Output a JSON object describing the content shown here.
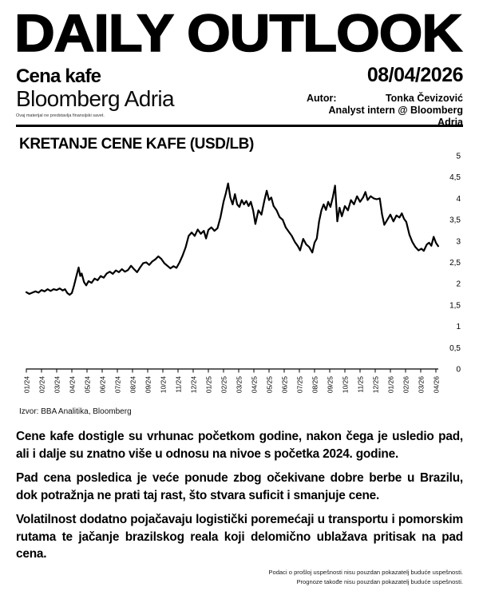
{
  "header": {
    "title": "DAILY OUTLOOK",
    "subtitle": "Cena kafe",
    "brand": "Bloomberg Adria",
    "date": "08/04/2026",
    "author_label": "Autor:",
    "author_name": "Tonka Čevizović",
    "author_role": "Analyst intern @ Bloomberg Adria",
    "micro_disclaimer": "Ovaj materijal ne predstavlja finansijski savet."
  },
  "chart": {
    "title": "KRETANJE CENE KAFE (USD/LB)",
    "source": "Izvor: BBA Analitika, Bloomberg"
  },
  "chart_data": {
    "type": "line",
    "title": "KRETANJE CENE KAFE (USD/LB)",
    "unit": "USD/LB",
    "grid": false,
    "legend": false,
    "line_color": "#000000",
    "xlim": [
      0,
      27.2
    ],
    "ylim": [
      0,
      5
    ],
    "x_tick_labels": [
      "01/24",
      "02/24",
      "03/24",
      "04/24",
      "05/24",
      "06/24",
      "07/24",
      "08/24",
      "09/24",
      "10/24",
      "11/24",
      "12/24",
      "01/25",
      "02/25",
      "03/25",
      "04/25",
      "05/25",
      "06/25",
      "07/25",
      "08/25",
      "09/25",
      "10/25",
      "11/25",
      "12/25",
      "01/26",
      "02/26",
      "03/26",
      "04/26"
    ],
    "y_ticks": [
      0,
      0.5,
      1,
      1.5,
      2,
      2.5,
      3,
      3.5,
      4,
      4.5,
      5
    ],
    "y_tick_labels": [
      "0",
      "0,5",
      "1",
      "1,5",
      "2",
      "2,5",
      "3",
      "3,5",
      "4",
      "4,5",
      "5"
    ],
    "series": [
      {
        "name": "Cena kafe (USD/LB)",
        "points": [
          [
            0,
            1.8
          ],
          [
            0.2,
            1.76
          ],
          [
            0.4,
            1.79
          ],
          [
            0.6,
            1.82
          ],
          [
            0.8,
            1.79
          ],
          [
            1.0,
            1.85
          ],
          [
            1.2,
            1.82
          ],
          [
            1.4,
            1.87
          ],
          [
            1.6,
            1.83
          ],
          [
            1.8,
            1.87
          ],
          [
            2.0,
            1.85
          ],
          [
            2.2,
            1.89
          ],
          [
            2.4,
            1.84
          ],
          [
            2.55,
            1.87
          ],
          [
            2.7,
            1.78
          ],
          [
            2.85,
            1.74
          ],
          [
            3.0,
            1.78
          ],
          [
            3.15,
            1.96
          ],
          [
            3.3,
            2.18
          ],
          [
            3.45,
            2.38
          ],
          [
            3.55,
            2.18
          ],
          [
            3.65,
            2.24
          ],
          [
            3.8,
            2.04
          ],
          [
            3.95,
            1.96
          ],
          [
            4.1,
            2.06
          ],
          [
            4.3,
            2.02
          ],
          [
            4.5,
            2.12
          ],
          [
            4.7,
            2.08
          ],
          [
            4.9,
            2.18
          ],
          [
            5.1,
            2.14
          ],
          [
            5.3,
            2.24
          ],
          [
            5.5,
            2.28
          ],
          [
            5.7,
            2.23
          ],
          [
            5.9,
            2.31
          ],
          [
            6.1,
            2.27
          ],
          [
            6.3,
            2.34
          ],
          [
            6.5,
            2.28
          ],
          [
            6.7,
            2.32
          ],
          [
            6.9,
            2.42
          ],
          [
            7.1,
            2.34
          ],
          [
            7.3,
            2.27
          ],
          [
            7.5,
            2.38
          ],
          [
            7.7,
            2.48
          ],
          [
            7.9,
            2.5
          ],
          [
            8.1,
            2.44
          ],
          [
            8.3,
            2.52
          ],
          [
            8.5,
            2.57
          ],
          [
            8.7,
            2.64
          ],
          [
            8.9,
            2.58
          ],
          [
            9.1,
            2.48
          ],
          [
            9.3,
            2.42
          ],
          [
            9.5,
            2.36
          ],
          [
            9.7,
            2.41
          ],
          [
            9.9,
            2.37
          ],
          [
            10.1,
            2.5
          ],
          [
            10.3,
            2.66
          ],
          [
            10.5,
            2.85
          ],
          [
            10.7,
            3.12
          ],
          [
            10.9,
            3.2
          ],
          [
            11.1,
            3.12
          ],
          [
            11.3,
            3.27
          ],
          [
            11.5,
            3.17
          ],
          [
            11.7,
            3.24
          ],
          [
            11.85,
            3.06
          ],
          [
            12.0,
            3.26
          ],
          [
            12.2,
            3.32
          ],
          [
            12.4,
            3.24
          ],
          [
            12.6,
            3.3
          ],
          [
            12.8,
            3.56
          ],
          [
            13.0,
            3.92
          ],
          [
            13.15,
            4.12
          ],
          [
            13.3,
            4.35
          ],
          [
            13.45,
            4.02
          ],
          [
            13.6,
            3.86
          ],
          [
            13.75,
            4.1
          ],
          [
            13.9,
            3.86
          ],
          [
            14.05,
            3.8
          ],
          [
            14.2,
            3.96
          ],
          [
            14.35,
            3.86
          ],
          [
            14.5,
            3.94
          ],
          [
            14.65,
            3.82
          ],
          [
            14.8,
            3.92
          ],
          [
            14.95,
            3.72
          ],
          [
            15.1,
            3.4
          ],
          [
            15.3,
            3.72
          ],
          [
            15.5,
            3.62
          ],
          [
            15.7,
            3.96
          ],
          [
            15.85,
            4.18
          ],
          [
            16.0,
            3.96
          ],
          [
            16.15,
            4.02
          ],
          [
            16.3,
            3.82
          ],
          [
            16.5,
            3.72
          ],
          [
            16.7,
            3.56
          ],
          [
            16.9,
            3.5
          ],
          [
            17.1,
            3.32
          ],
          [
            17.3,
            3.22
          ],
          [
            17.5,
            3.12
          ],
          [
            17.7,
            2.98
          ],
          [
            17.9,
            2.88
          ],
          [
            18.05,
            2.78
          ],
          [
            18.25,
            3.05
          ],
          [
            18.45,
            2.92
          ],
          [
            18.65,
            2.86
          ],
          [
            18.85,
            2.73
          ],
          [
            19.0,
            2.96
          ],
          [
            19.15,
            3.06
          ],
          [
            19.3,
            3.46
          ],
          [
            19.45,
            3.72
          ],
          [
            19.6,
            3.86
          ],
          [
            19.75,
            3.73
          ],
          [
            19.9,
            3.92
          ],
          [
            20.05,
            3.8
          ],
          [
            20.2,
            4.02
          ],
          [
            20.35,
            4.3
          ],
          [
            20.5,
            3.46
          ],
          [
            20.65,
            3.78
          ],
          [
            20.8,
            3.58
          ],
          [
            21.0,
            3.82
          ],
          [
            21.2,
            3.72
          ],
          [
            21.4,
            3.96
          ],
          [
            21.6,
            3.86
          ],
          [
            21.8,
            4.05
          ],
          [
            22.0,
            3.92
          ],
          [
            22.2,
            4.02
          ],
          [
            22.35,
            4.15
          ],
          [
            22.5,
            3.96
          ],
          [
            22.7,
            4.05
          ],
          [
            22.9,
            4.0
          ],
          [
            23.1,
            3.98
          ],
          [
            23.3,
            4.0
          ],
          [
            23.45,
            3.62
          ],
          [
            23.6,
            3.38
          ],
          [
            23.8,
            3.5
          ],
          [
            24.0,
            3.62
          ],
          [
            24.2,
            3.46
          ],
          [
            24.4,
            3.6
          ],
          [
            24.6,
            3.55
          ],
          [
            24.75,
            3.65
          ],
          [
            24.9,
            3.52
          ],
          [
            25.05,
            3.45
          ],
          [
            25.25,
            3.15
          ],
          [
            25.45,
            2.98
          ],
          [
            25.65,
            2.86
          ],
          [
            25.85,
            2.78
          ],
          [
            26.05,
            2.82
          ],
          [
            26.2,
            2.77
          ],
          [
            26.4,
            2.92
          ],
          [
            26.55,
            2.96
          ],
          [
            26.7,
            2.89
          ],
          [
            26.85,
            3.1
          ],
          [
            27.0,
            2.96
          ],
          [
            27.15,
            2.88
          ]
        ]
      }
    ]
  },
  "body": {
    "paragraphs": [
      "Cene kafe dostigle su vrhunac početkom godine, nakon čega je usledio pad, ali i dalje su znatno više u odnosu na nivoe s početka 2024. godine.",
      "Pad cena posledica je veće ponude zbog očekivane dobre berbe u Brazilu, dok potražnja ne prati taj rast, što stvara suficit i smanjuje cene.",
      "Volatilnost dodatno pojačavaju logistički poremećaji u transportu i pomorskim rutama te jačanje brazilskog reala koji delomično ublažava pritisak na pad cena."
    ]
  },
  "footer": {
    "lines": [
      "Podaci o prošloj uspešnosti nisu pouzdan pokazatelj buduće uspešnosti.",
      "Prognoze takođe nisu pouzdan pokazatelj buduće uspešnosti."
    ]
  },
  "colors": {
    "accent": "#000000",
    "background": "#ffffff"
  }
}
